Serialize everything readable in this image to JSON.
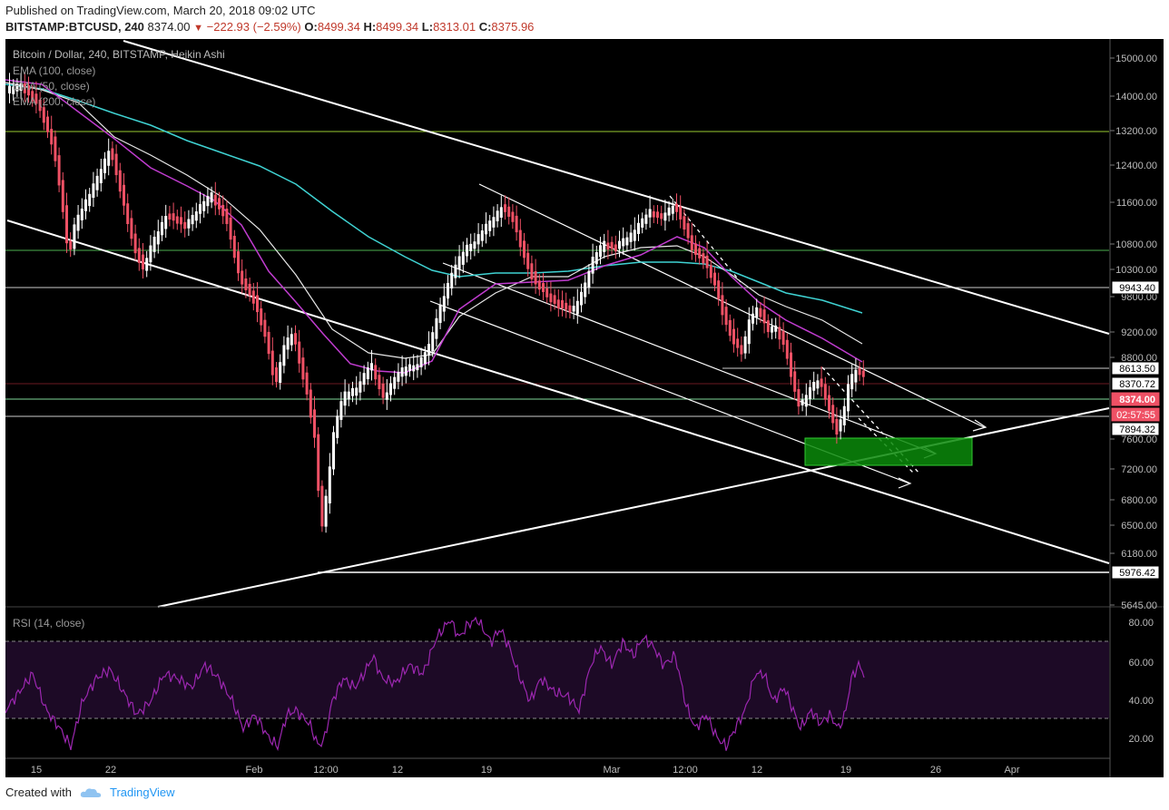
{
  "header": {
    "published": "Published on TradingView.com, March 20, 2018 09:02 UTC",
    "symbol": "BITSTAMP:BTCUSD, 240",
    "last": "8374.00",
    "change": "−222.93 (−2.59%)",
    "o_label": "O:",
    "o_value": "8499.34",
    "h_label": "H:",
    "h_value": "8499.34",
    "l_label": "L:",
    "l_value": "8313.01",
    "c_label": "C:",
    "c_value": "8375.96"
  },
  "legend": {
    "title": "Bitcoin / Dollar, 240, BITSTAMP, Heikin Ashi",
    "ema1": "EMA (100, close)",
    "ema2": "EMA (50, close)",
    "ema3": "EMA (200, close)",
    "rsi": "RSI (14, close)"
  },
  "footer": {
    "created_with": "Created with",
    "brand": "TradingView"
  },
  "colors": {
    "background": "#000000",
    "up_candle": "#ffffff",
    "down_candle": "#ef5165",
    "ema50": "#c03ccf",
    "ema100": "#e8e8e8",
    "ema200": "#3fd2d2",
    "support_green": "#7ac943",
    "rsi_line": "#9c27b0",
    "zone_fill": "#0a8a0a"
  },
  "chart_data": {
    "type": "candlestick",
    "title": "Bitcoin / Dollar, 240, BITSTAMP, Heikin Ashi",
    "price_axis_ticks": [
      15000,
      14000,
      13200,
      12400,
      11600,
      10800,
      10300,
      9800,
      9200,
      8800,
      7600,
      7200,
      6800,
      6500,
      6180,
      5645
    ],
    "price_axis_labels": [
      "15000.00",
      "14000.00",
      "13200.00",
      "12400.00",
      "11600.00",
      "10800.00",
      "10300.00",
      "9800.00",
      "9200.00",
      "8800.00",
      "7600.00",
      "7200.00",
      "6800.00",
      "6500.00",
      "6180.00",
      "5645.00"
    ],
    "time_axis_labels": [
      "15",
      "22",
      "Feb",
      "12:00",
      "12",
      "19",
      "Mar",
      "12:00",
      "12",
      "19",
      "26",
      "Apr"
    ],
    "ylim": [
      5645,
      15000
    ],
    "price_tags": [
      {
        "label": "9943.40",
        "style": "outline"
      },
      {
        "label": "8613.50",
        "style": "outline"
      },
      {
        "label": "8370.72",
        "style": "outline"
      },
      {
        "label": "8374.00",
        "style": "last"
      },
      {
        "label": "02:57:55",
        "style": "countdown"
      },
      {
        "label": "7894.32",
        "style": "outline"
      },
      {
        "label": "5976.42",
        "style": "outline"
      }
    ],
    "horizontal_levels": [
      {
        "price": 13200,
        "color": "green"
      },
      {
        "price": 10600,
        "color": "green"
      },
      {
        "price": 9943.4,
        "color": "white"
      },
      {
        "price": 8613.5,
        "color": "white"
      },
      {
        "price": 8370.72,
        "color": "maroon"
      },
      {
        "price": 8150,
        "color": "green"
      },
      {
        "price": 7894.32,
        "color": "white"
      },
      {
        "price": 5976.42,
        "color": "white"
      }
    ],
    "rsi": {
      "ylim": [
        10,
        90
      ],
      "ticks": [
        80,
        60,
        40,
        20
      ],
      "tick_labels": [
        "80.00",
        "60.00",
        "40.00",
        "20.00"
      ],
      "band": [
        30,
        70
      ]
    }
  }
}
